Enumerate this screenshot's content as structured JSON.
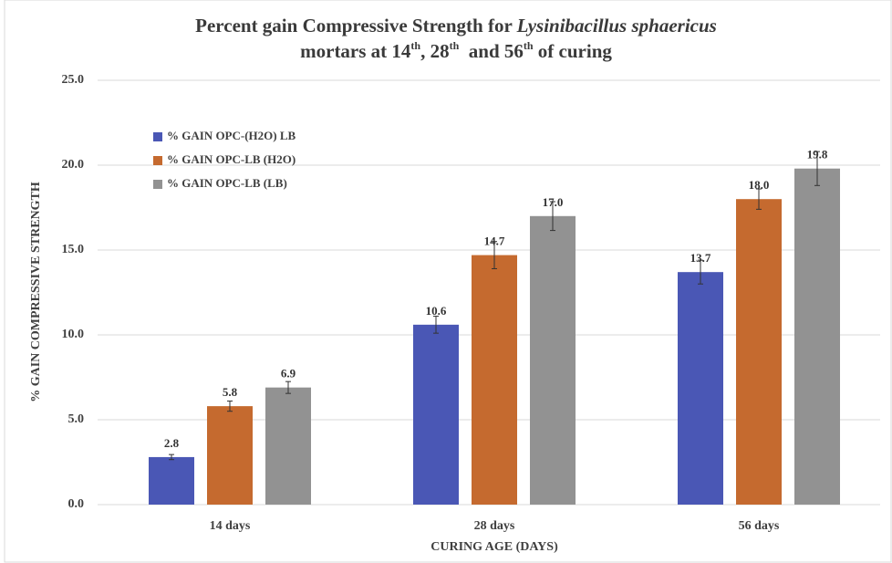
{
  "chart_data": {
    "type": "bar",
    "title": [
      [
        "Percent gain Compressive Strength for ",
        "Lysinibacillus sphaericus"
      ],
      [
        "mortars at 14",
        "th",
        ", 28",
        "th",
        "  and 56",
        "th",
        " of curing"
      ]
    ],
    "x_label": "CURING AGE (DAYS)",
    "y_label": "% GAIN COMPRESSIVE STRENGTH",
    "categories": [
      "14 days",
      "28 days",
      "56 days"
    ],
    "series": [
      {
        "name": "% GAIN OPC-(H2O) LB",
        "color": "#4a57b5",
        "values": [
          2.8,
          10.6,
          13.7
        ],
        "errors": [
          0.15,
          0.5,
          0.7
        ]
      },
      {
        "name": "% GAIN OPC-LB (H2O)",
        "color": "#c56a2f",
        "values": [
          5.8,
          14.7,
          18.0
        ],
        "value_labels": [
          "5.8",
          "14.7",
          "18.0"
        ],
        "errors": [
          0.3,
          0.8,
          0.6
        ]
      },
      {
        "name": "% GAIN OPC-LB (LB)",
        "color": "#929292",
        "values": [
          6.9,
          17.0,
          19.8
        ],
        "value_labels": [
          "6.9",
          "17.0",
          "19.8"
        ],
        "errors": [
          0.35,
          0.85,
          1.0
        ]
      }
    ],
    "ylim": [
      0,
      25
    ],
    "yticks": [
      {
        "value": 0,
        "label": "0.0"
      },
      {
        "value": 5,
        "label": "5.0"
      },
      {
        "value": 10,
        "label": "10.0"
      },
      {
        "value": 15,
        "label": "15.0"
      },
      {
        "value": 20,
        "label": "20.0"
      },
      {
        "value": 25,
        "label": "25.0"
      }
    ],
    "grid": true
  }
}
